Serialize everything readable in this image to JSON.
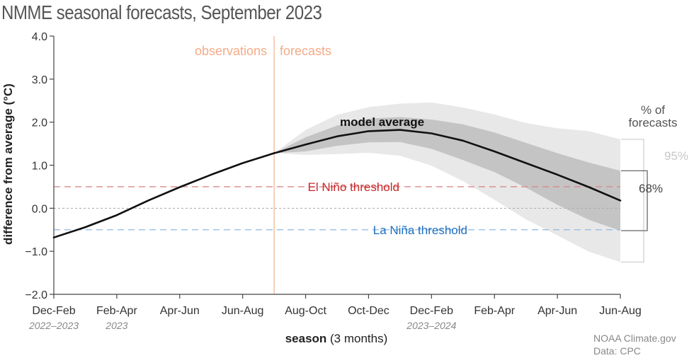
{
  "title": "NMME seasonal forecasts, September 2023",
  "chart_data": {
    "type": "line",
    "title": "NMME seasonal forecasts, September 2023",
    "ylabel": "difference from average (°C)",
    "xlabel_bold": "season",
    "xlabel_rest": " (3 months)",
    "ylim": [
      -2.0,
      4.0
    ],
    "yticks": [
      "−2.0",
      "−1.0",
      "0.0",
      "1.0",
      "2.0",
      "3.0",
      "4.0"
    ],
    "ytick_values": [
      -2,
      -1,
      0,
      1,
      2,
      3,
      4
    ],
    "categories": [
      "Dec-Feb",
      "Feb-Apr",
      "Apr-Jun",
      "Jun-Aug",
      "Aug-Oct",
      "Oct-Dec",
      "Dec-Feb",
      "Feb-Apr",
      "Apr-Jun",
      "Jun-Aug"
    ],
    "year_labels": [
      {
        "tick": 0,
        "text": "2022–2023"
      },
      {
        "tick": 1,
        "text": "2023"
      },
      {
        "tick": 6,
        "text": "2023–2024"
      }
    ],
    "observations_label": "observations",
    "forecasts_label": "forecasts",
    "observations": {
      "x": [
        0,
        0.5,
        1,
        1.5,
        2,
        2.5,
        3,
        3.5
      ],
      "y": [
        -0.68,
        -0.44,
        -0.16,
        0.18,
        0.49,
        0.78,
        1.05,
        1.28
      ]
    },
    "model_average": {
      "name": "model average",
      "x": [
        3.5,
        4,
        4.5,
        5,
        5.5,
        6,
        6.5,
        7,
        7.5,
        8,
        8.5,
        9
      ],
      "y": [
        1.28,
        1.48,
        1.67,
        1.79,
        1.82,
        1.74,
        1.57,
        1.32,
        1.05,
        0.78,
        0.49,
        0.18
      ]
    },
    "band_68": {
      "name": "68%",
      "x": [
        3.5,
        4,
        4.5,
        5,
        5.5,
        6,
        6.5,
        7,
        7.5,
        8,
        8.5,
        9
      ],
      "upper": [
        1.28,
        1.65,
        1.92,
        2.08,
        2.12,
        2.06,
        1.95,
        1.76,
        1.52,
        1.28,
        1.06,
        0.87
      ],
      "lower": [
        1.28,
        1.32,
        1.45,
        1.53,
        1.54,
        1.38,
        1.12,
        0.84,
        0.48,
        0.08,
        -0.27,
        -0.52
      ]
    },
    "band_95": {
      "name": "95%",
      "x": [
        3.5,
        4,
        4.5,
        5,
        5.5,
        6,
        6.5,
        7,
        7.5,
        8,
        8.5,
        9
      ],
      "upper": [
        1.28,
        1.82,
        2.17,
        2.35,
        2.43,
        2.46,
        2.34,
        2.18,
        1.98,
        1.86,
        1.79,
        1.6
      ],
      "lower": [
        1.28,
        1.24,
        1.26,
        1.29,
        1.22,
        0.99,
        0.63,
        0.2,
        -0.26,
        -0.63,
        -1.01,
        -1.25
      ]
    },
    "el_nino_threshold": {
      "value": 0.5,
      "label": "El Niño threshold",
      "color": "#d9888c",
      "text_color": "#c62828"
    },
    "la_nina_threshold": {
      "value": -0.5,
      "label": "La Niña threshold",
      "color": "#8fb9e0",
      "text_color": "#1f6fbf"
    },
    "zero_line_color": "#aaaaaa",
    "divider_color": "#f6c2a4",
    "legend_title": "% of forecasts",
    "legend_title_lines": [
      "% of",
      "forecasts"
    ],
    "band_68_label": "68%",
    "band_95_label": "95%",
    "colors": {
      "line": "#111111",
      "band_95": "#e8e8e8",
      "band_68": "#c4c4c4",
      "obs_label": "#f4ab88",
      "label_95": "#c8c8c8",
      "label_68": "#444444"
    }
  },
  "credit": {
    "line1": "NOAA Climate.gov",
    "line2": "Data: CPC"
  }
}
